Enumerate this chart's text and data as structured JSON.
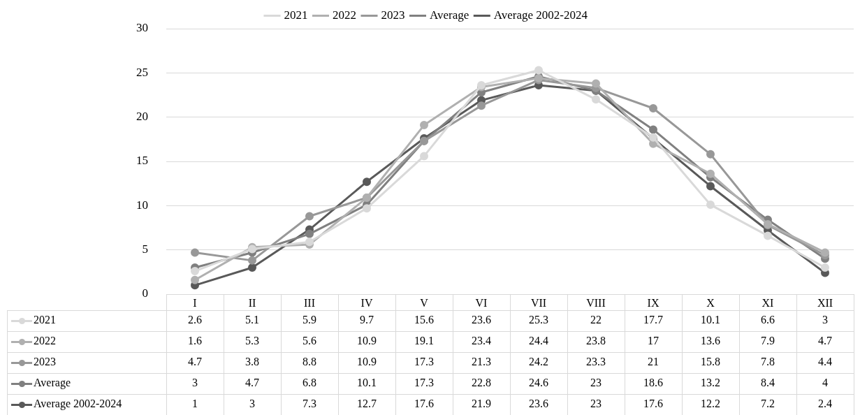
{
  "chart_data": {
    "type": "line",
    "categories": [
      "I",
      "II",
      "III",
      "IV",
      "V",
      "VI",
      "VII",
      "VIII",
      "IX",
      "X",
      "XI",
      "XII"
    ],
    "series": [
      {
        "name": "2021",
        "color": "#d9d9d9",
        "values": [
          2.6,
          5.1,
          5.9,
          9.7,
          15.6,
          23.6,
          25.3,
          22,
          17.7,
          10.1,
          6.6,
          3
        ]
      },
      {
        "name": "2022",
        "color": "#b0b0b0",
        "values": [
          1.6,
          5.3,
          5.6,
          10.9,
          19.1,
          23.4,
          24.4,
          23.8,
          17,
          13.6,
          7.9,
          4.7
        ]
      },
      {
        "name": "2023",
        "color": "#989898",
        "values": [
          4.7,
          3.8,
          8.8,
          10.9,
          17.3,
          21.3,
          24.2,
          23.3,
          21,
          15.8,
          7.8,
          4.4
        ]
      },
      {
        "name": "Average",
        "color": "#808080",
        "values": [
          3,
          4.7,
          6.8,
          10.1,
          17.3,
          22.8,
          24.6,
          23,
          18.6,
          13.2,
          8.4,
          4
        ]
      },
      {
        "name": "Average 2002-2024",
        "color": "#595959",
        "values": [
          1,
          3,
          7.3,
          12.7,
          17.6,
          21.9,
          23.6,
          23,
          17.6,
          12.2,
          7.2,
          2.4
        ]
      }
    ],
    "ylim": [
      0,
      30
    ],
    "yticks": [
      0,
      5,
      10,
      15,
      20,
      25,
      30
    ],
    "grid": "y",
    "legend": "top",
    "marker": "circle",
    "line_style": "solid",
    "data_labels": true
  }
}
